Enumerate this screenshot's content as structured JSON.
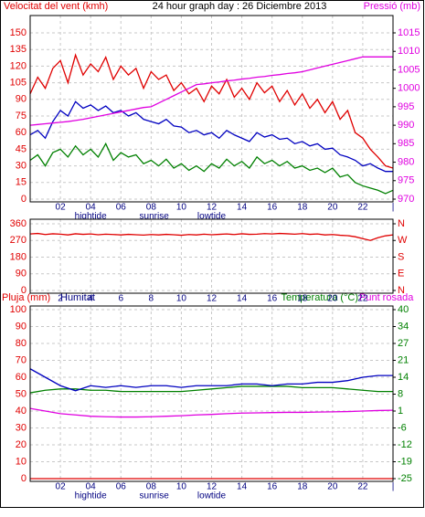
{
  "chart_data": [
    {
      "type": "line",
      "title": "24 hour graph day : 26 Diciembre 2013",
      "ylabel": "Velocitat del vent (kmh)",
      "y2label": "Pressió (mb)",
      "grid": true,
      "x": [
        0,
        0.5,
        1,
        1.5,
        2,
        2.5,
        3,
        3.5,
        4,
        4.5,
        5,
        5.5,
        6,
        6.5,
        7,
        7.5,
        8,
        8.5,
        9,
        9.5,
        10,
        10.5,
        11,
        11.5,
        12,
        12.5,
        13,
        13.5,
        14,
        14.5,
        15,
        15.5,
        16,
        16.5,
        17,
        17.5,
        18,
        18.5,
        19,
        19.5,
        20,
        20.5,
        21,
        21.5,
        22,
        22.5,
        23,
        23.5,
        24
      ],
      "xlim": [
        0,
        24
      ],
      "xticks": [
        {
          "value": 2,
          "label": "02"
        },
        {
          "value": 4,
          "label": "04"
        },
        {
          "value": 6,
          "label": "06"
        },
        {
          "value": 8,
          "label": "08"
        },
        10,
        12,
        14,
        16,
        18,
        20,
        22,
        {
          "value": 24,
          "label": "|"
        }
      ],
      "annotations": [
        {
          "x": 4,
          "text": "hightide"
        },
        {
          "x": 8.2,
          "text": "sunrise"
        },
        {
          "x": 12,
          "text": "lowtide"
        }
      ],
      "ylim": [
        0,
        150
      ],
      "yticks": [
        0,
        15,
        30,
        45,
        60,
        75,
        90,
        105,
        120,
        135,
        150
      ],
      "y2lim": [
        970,
        1015
      ],
      "y2ticks": [
        970,
        975,
        980,
        985,
        990,
        995,
        1000,
        1005,
        1010,
        1015
      ],
      "series": [
        {
          "color": "#e00000",
          "values": [
            95,
            110,
            100,
            118,
            125,
            105,
            130,
            112,
            122,
            115,
            128,
            108,
            120,
            112,
            118,
            100,
            115,
            108,
            112,
            98,
            105,
            95,
            100,
            88,
            102,
            95,
            108,
            92,
            100,
            90,
            105,
            96,
            102,
            88,
            98,
            85,
            95,
            82,
            90,
            78,
            88,
            72,
            80,
            60,
            55,
            45,
            38,
            30,
            28
          ]
        },
        {
          "color": "#008000",
          "values": [
            35,
            40,
            30,
            42,
            45,
            38,
            48,
            40,
            45,
            38,
            50,
            35,
            42,
            38,
            40,
            32,
            35,
            30,
            36,
            28,
            32,
            26,
            30,
            25,
            32,
            28,
            36,
            30,
            34,
            28,
            38,
            32,
            35,
            30,
            34,
            28,
            30,
            26,
            28,
            24,
            28,
            20,
            22,
            15,
            12,
            10,
            8,
            5,
            8
          ]
        },
        {
          "color": "#0000c0",
          "values": [
            58,
            62,
            55,
            70,
            80,
            75,
            88,
            82,
            85,
            80,
            84,
            78,
            80,
            75,
            78,
            72,
            70,
            68,
            72,
            66,
            65,
            60,
            62,
            58,
            60,
            55,
            62,
            58,
            55,
            52,
            60,
            56,
            58,
            54,
            55,
            50,
            52,
            48,
            50,
            45,
            46,
            40,
            38,
            35,
            30,
            32,
            28,
            25,
            25
          ]
        },
        {
          "color": "#e000e0",
          "axis": "y2",
          "values": [
            990,
            990.2,
            990.4,
            990.6,
            990.8,
            991,
            991.3,
            991.6,
            992,
            992.4,
            992.8,
            993.2,
            993.6,
            994,
            994.4,
            994.8,
            995,
            996,
            997,
            998,
            999,
            1000,
            1001,
            1001.2,
            1001.5,
            1001.7,
            1002,
            1002.2,
            1002.5,
            1002.7,
            1003,
            1003.2,
            1003.5,
            1003.7,
            1004,
            1004.2,
            1004.5,
            1005,
            1005.5,
            1006,
            1006.5,
            1007,
            1007.5,
            1008,
            1008.5,
            1008.5,
            1008.5,
            1008.5,
            1008.5
          ]
        }
      ]
    },
    {
      "type": "line",
      "grid": true,
      "x": [
        0,
        0.5,
        1,
        1.5,
        2,
        2.5,
        3,
        3.5,
        4,
        4.5,
        5,
        5.5,
        6,
        6.5,
        7,
        7.5,
        8,
        8.5,
        9,
        9.5,
        10,
        10.5,
        11,
        11.5,
        12,
        12.5,
        13,
        13.5,
        14,
        14.5,
        15,
        15.5,
        16,
        16.5,
        17,
        17.5,
        18,
        18.5,
        19,
        19.5,
        20,
        20.5,
        21,
        21.5,
        22,
        22.5,
        23,
        23.5,
        24
      ],
      "xlim": [
        0,
        24
      ],
      "xticks": [
        2,
        4,
        6,
        8,
        10,
        12,
        14,
        16,
        18,
        20,
        22
      ],
      "ylim": [
        0,
        360
      ],
      "yticks": [
        0,
        90,
        180,
        270,
        360
      ],
      "y2lim": [
        0,
        360
      ],
      "y2ticks": [
        {
          "value": 0,
          "label": "N"
        },
        {
          "value": 90,
          "label": "E"
        },
        {
          "value": 180,
          "label": "S"
        },
        {
          "value": 270,
          "label": "W"
        },
        {
          "value": 360,
          "label": "N"
        }
      ],
      "series": [
        {
          "color": "#e00000",
          "values": [
            305,
            308,
            302,
            306,
            304,
            300,
            306,
            303,
            305,
            301,
            304,
            302,
            300,
            303,
            301,
            299,
            302,
            300,
            303,
            301,
            298,
            302,
            300,
            304,
            301,
            303,
            305,
            302,
            306,
            303,
            304,
            307,
            305,
            308,
            306,
            304,
            307,
            303,
            305,
            300,
            302,
            298,
            296,
            290,
            280,
            270,
            285,
            295,
            300
          ]
        }
      ]
    },
    {
      "type": "line",
      "grid": true,
      "x": [
        0,
        1,
        2,
        3,
        4,
        5,
        6,
        7,
        8,
        9,
        10,
        11,
        12,
        13,
        14,
        15,
        16,
        17,
        18,
        19,
        20,
        21,
        22,
        23,
        24
      ],
      "xlim": [
        0,
        24
      ],
      "xticks": [
        {
          "value": 2,
          "label": "02"
        },
        {
          "value": 4,
          "label": "04"
        },
        {
          "value": 6,
          "label": "06"
        },
        {
          "value": 8,
          "label": "08"
        },
        10,
        12,
        14,
        16,
        18,
        20,
        22,
        {
          "value": 24,
          "label": "|"
        }
      ],
      "annotations": [
        {
          "x": 4,
          "text": "hightide"
        },
        {
          "x": 8.2,
          "text": "sunrise"
        },
        {
          "x": 12,
          "text": "lowtide"
        }
      ],
      "ylim": [
        0,
        100
      ],
      "yticks": [
        0,
        10,
        20,
        30,
        40,
        50,
        60,
        70,
        80,
        90,
        100
      ],
      "y2lim": [
        -25,
        40
      ],
      "y2ticks": [
        -25,
        {
          "value": -18.5,
          "label": "-19"
        },
        -12,
        {
          "value": -5.5,
          "label": "-6"
        },
        1,
        {
          "value": 7.5,
          "label": "8"
        },
        14,
        {
          "value": 20.5,
          "label": "21"
        },
        27,
        {
          "value": 33.5,
          "label": "34"
        },
        40
      ],
      "series": [
        {
          "name": "Pluja (mm)",
          "color": "#e00000",
          "values": [
            0,
            0,
            0,
            0,
            0,
            0,
            0,
            0,
            0,
            0,
            0,
            0,
            0,
            0,
            0,
            0,
            0,
            0,
            0,
            0,
            0,
            0,
            0,
            0,
            0
          ]
        },
        {
          "name": "Temperatura (°C)",
          "color": "#008000",
          "axis": "y2",
          "values": [
            8,
            9,
            9.5,
            9.5,
            9,
            9,
            8.5,
            8.5,
            8.5,
            8.5,
            8.5,
            9,
            9.5,
            10,
            10.5,
            10.5,
            10.5,
            10.5,
            10,
            10,
            10,
            9.5,
            9,
            8.5,
            8.5
          ]
        },
        {
          "name": "Humitat",
          "color": "#0000c0",
          "values": [
            65,
            60,
            55,
            52,
            55,
            54,
            55,
            54,
            55,
            55,
            54,
            55,
            55,
            55,
            56,
            56,
            55,
            56,
            56,
            57,
            57,
            58,
            60,
            61,
            61
          ]
        },
        {
          "name": "Punt rosada",
          "color": "#e000e0",
          "axis": "y2",
          "values": [
            2,
            1,
            0,
            -0.5,
            -1,
            -1.2,
            -1.3,
            -1.3,
            -1.2,
            -1,
            -0.8,
            -0.5,
            -0.3,
            0,
            0.2,
            0.3,
            0.4,
            0.5,
            0.5,
            0.6,
            0.7,
            0.8,
            1,
            1.2,
            1.3
          ]
        }
      ]
    }
  ]
}
